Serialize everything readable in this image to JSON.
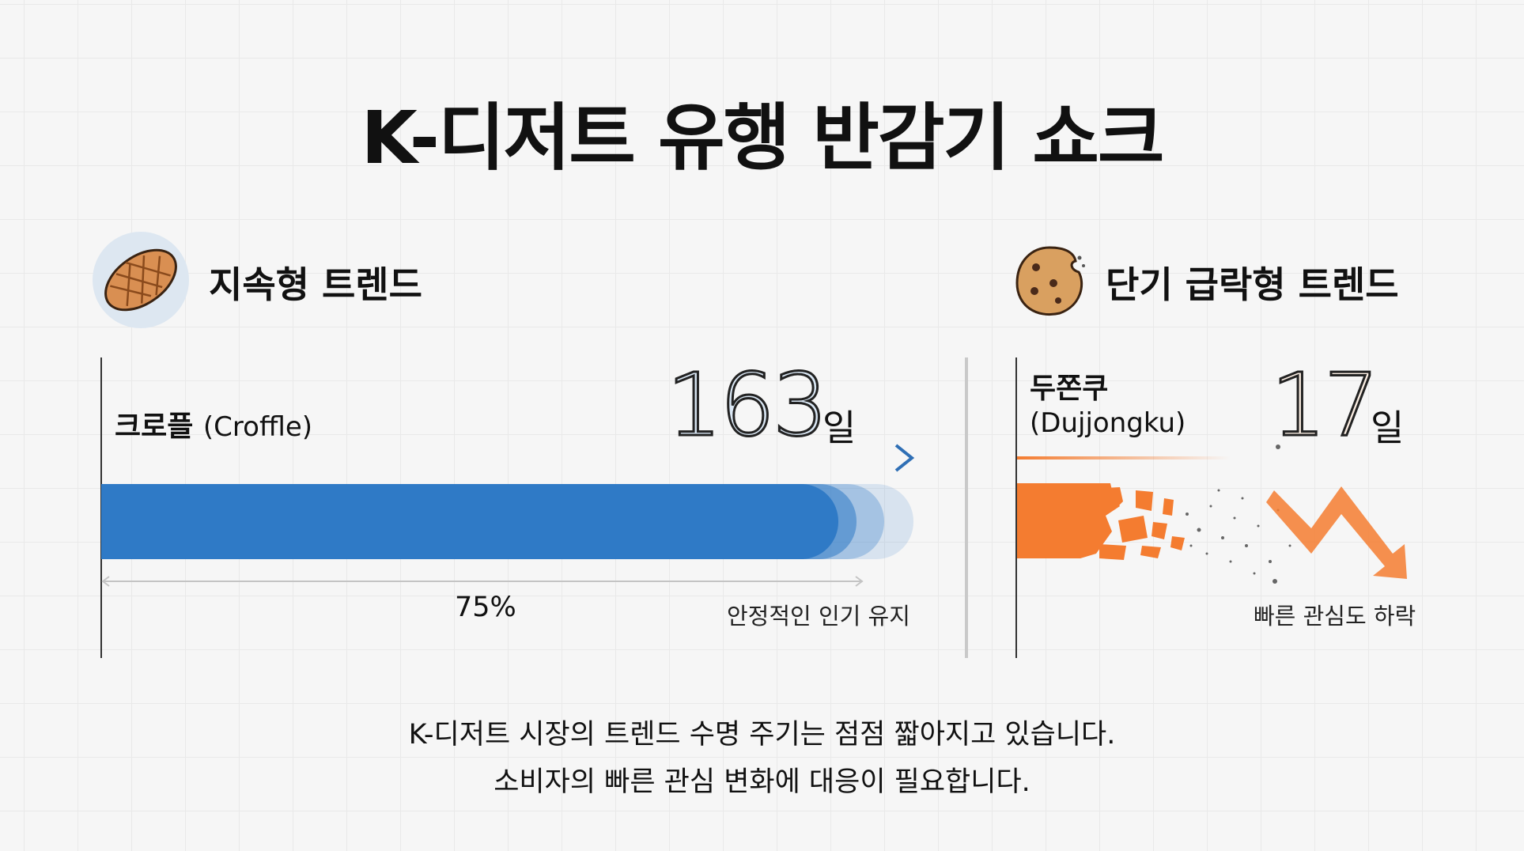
{
  "title": "K-디저트 유행 반감기 쇼크",
  "left": {
    "section_title": "지속형 트렌드",
    "icon": "croffle-icon",
    "name_ko": "크로플",
    "name_en": "(Croffle)",
    "days": "163",
    "unit": "일",
    "percent_label": "75%",
    "note": "안정적인 인기 유지",
    "color": "#2f7ac6"
  },
  "right": {
    "section_title": "단기 급락형 트렌드",
    "icon": "cookie-icon",
    "name_ko": "두쫀쿠",
    "name_en": "(Dujjongku)",
    "days": "17",
    "unit": "일",
    "note": "빠른 관심도 하락",
    "color": "#f47c30"
  },
  "footer": {
    "line1": "K-디저트 시장의 트렌드 수명 주기는 점점 짧아지고 있습니다.",
    "line2": "소비자의 빠른 관심 변화에 대응이 필요합니다."
  },
  "chart_data": {
    "type": "bar",
    "orientation": "horizontal",
    "categories": [
      "크로플 (Croffle)",
      "두쫀쿠 (Dujjongku)"
    ],
    "values": [
      163,
      17
    ],
    "unit": "일",
    "colors": [
      "#2f7ac6",
      "#f47c30"
    ]
  }
}
